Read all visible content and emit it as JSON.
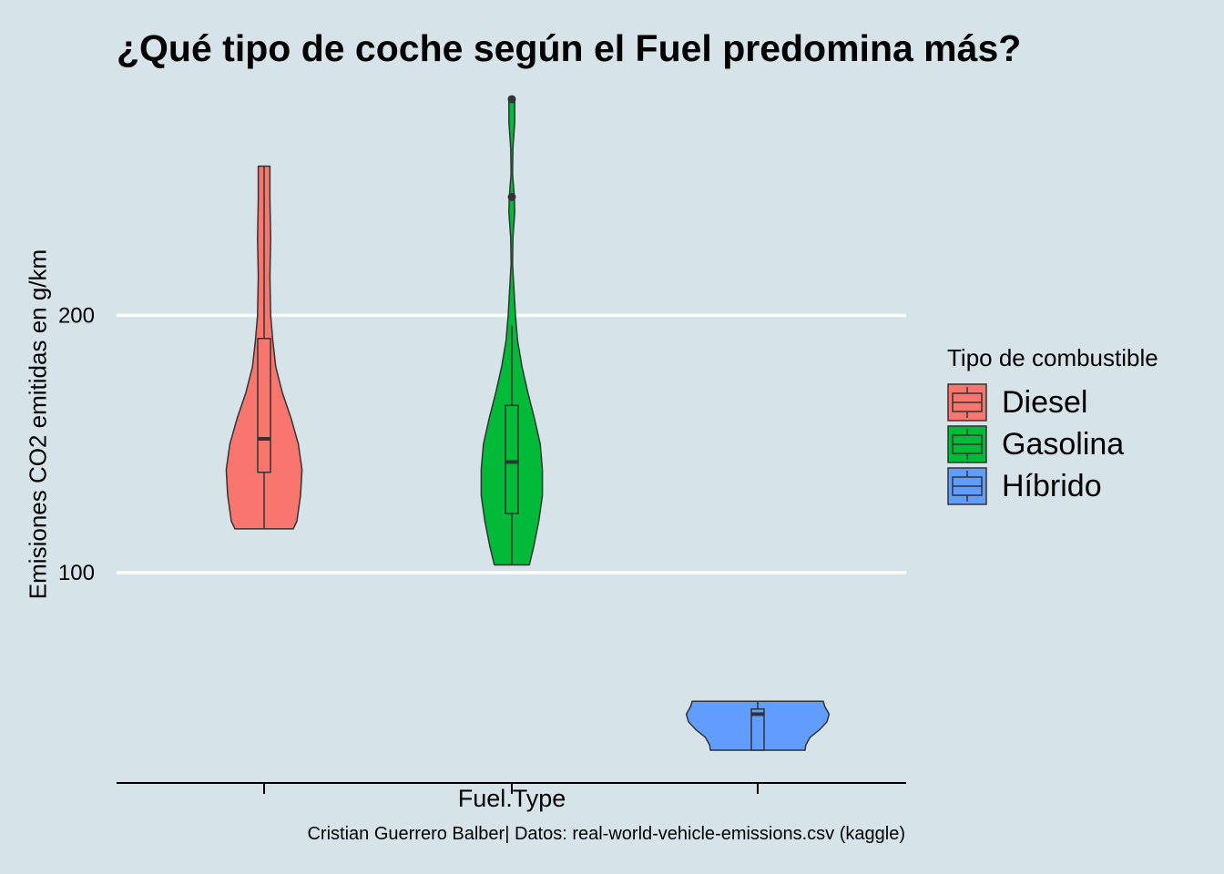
{
  "chart_data": {
    "type": "violin",
    "title": "¿Qué tipo de coche según el Fuel predomina más?",
    "xlabel": "Fuel.Type",
    "ylabel": "Emisiones CO2 emitidas en g/km",
    "caption": "Cristian Guerrero Balber| Datos: real-world-vehicle-emissions.csv (kaggle)",
    "ylim": [
      19,
      290
    ],
    "yticks": [
      100,
      200
    ],
    "grid": "horizontal major only",
    "legend": {
      "title": "Tipo de combustible",
      "placement": "right",
      "entries": [
        {
          "label": "Diesel",
          "color": "#F8766D"
        },
        {
          "label": "Gasolina",
          "color": "#00BA38"
        },
        {
          "label": "Híbrido",
          "color": "#619CFF"
        }
      ]
    },
    "series": [
      {
        "name": "Diesel",
        "color": "#F8766D",
        "box": {
          "min": 117,
          "q1": 139,
          "median": 152,
          "q3": 191,
          "max": 258
        },
        "outliers": [],
        "violin": [
          [
            117,
            0.4
          ],
          [
            120,
            0.45
          ],
          [
            130,
            0.5
          ],
          [
            140,
            0.52
          ],
          [
            150,
            0.47
          ],
          [
            160,
            0.37
          ],
          [
            170,
            0.25
          ],
          [
            180,
            0.16
          ],
          [
            190,
            0.12
          ],
          [
            200,
            0.09
          ],
          [
            215,
            0.08
          ],
          [
            230,
            0.09
          ],
          [
            245,
            0.08
          ],
          [
            258,
            0.08
          ]
        ]
      },
      {
        "name": "Gasolina",
        "color": "#00BA38",
        "box": {
          "min": 103,
          "q1": 123,
          "median": 143,
          "q3": 165,
          "max": 196
        },
        "outliers": [
          246,
          284
        ],
        "violin": [
          [
            103,
            0.24
          ],
          [
            110,
            0.3
          ],
          [
            120,
            0.37
          ],
          [
            130,
            0.42
          ],
          [
            140,
            0.42
          ],
          [
            150,
            0.39
          ],
          [
            160,
            0.31
          ],
          [
            170,
            0.22
          ],
          [
            180,
            0.14
          ],
          [
            190,
            0.08
          ],
          [
            200,
            0.05
          ],
          [
            210,
            0.03
          ],
          [
            220,
            0.01
          ],
          [
            230,
            0.015
          ],
          [
            240,
            0.04
          ],
          [
            246,
            0.035
          ],
          [
            255,
            0.01
          ],
          [
            265,
            0.015
          ],
          [
            275,
            0.04
          ],
          [
            284,
            0.04
          ]
        ]
      },
      {
        "name": "Híbrido",
        "color": "#619CFF",
        "box": {
          "min": 31,
          "q1": 31,
          "median": 45,
          "q3": 47,
          "max": 50
        },
        "outliers": [],
        "violin": [
          [
            31,
            0.65
          ],
          [
            33,
            0.66
          ],
          [
            36,
            0.72
          ],
          [
            39,
            0.85
          ],
          [
            42,
            0.95
          ],
          [
            45,
            0.98
          ],
          [
            48,
            0.92
          ],
          [
            50,
            0.9
          ]
        ]
      }
    ]
  }
}
